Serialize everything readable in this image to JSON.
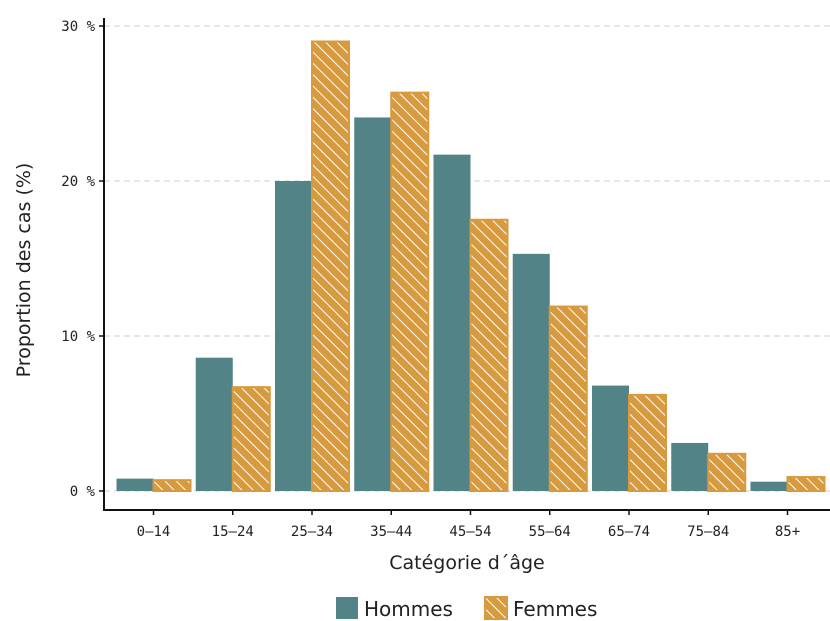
{
  "chart_data": {
    "type": "bar",
    "title": "",
    "xlabel": "Catégorie d´âge",
    "ylabel": "Proportion des cas (%)",
    "categories": [
      "0–14",
      "15–24",
      "25–34",
      "35–44",
      "45–54",
      "55–64",
      "65–74",
      "75–84",
      "85+"
    ],
    "series": [
      {
        "name": "Hommes",
        "color": "#528386",
        "pattern": "solid",
        "values": [
          0.8,
          8.6,
          20.0,
          24.1,
          21.7,
          15.3,
          6.8,
          3.1,
          0.6
        ]
      },
      {
        "name": "Femmes",
        "color": "#D89A3E",
        "pattern": "hatched",
        "values": [
          0.7,
          6.7,
          29.0,
          25.7,
          17.5,
          11.9,
          6.2,
          2.4,
          0.9
        ]
      }
    ],
    "ylim": [
      0,
      30
    ],
    "yticks": [
      0,
      10,
      20,
      30
    ],
    "ytick_labels": [
      "0 %",
      "10 %",
      "20 %",
      "30 %"
    ],
    "grid": "horizontal dashed",
    "legend_position": "bottom"
  }
}
